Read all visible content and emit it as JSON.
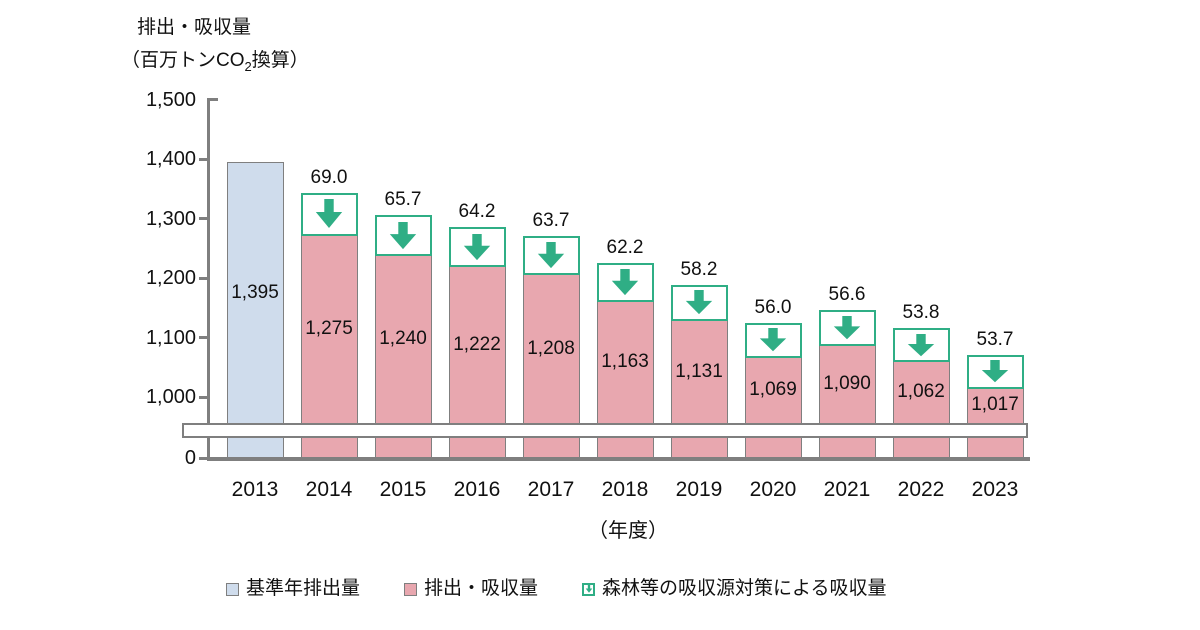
{
  "chart_data": {
    "type": "bar",
    "title": "排出・吸収量",
    "unit_parts": {
      "pre": "（百万トンCO",
      "sub": "2",
      "post": "換算）"
    },
    "unit": "（百万トンCO2換算）",
    "xlabel": "（年度）",
    "grid": false,
    "axis_break_between": [
      0,
      1000
    ],
    "y_axis": {
      "visible_range_upper": [
        1000,
        1500
      ],
      "ticks": [
        {
          "label": "1,500",
          "value": 1500
        },
        {
          "label": "1,400",
          "value": 1400
        },
        {
          "label": "1,300",
          "value": 1300
        },
        {
          "label": "1,200",
          "value": 1200
        },
        {
          "label": "1,100",
          "value": 1100
        },
        {
          "label": "1,000",
          "value": 1000
        },
        {
          "label": "0",
          "value": 0
        }
      ]
    },
    "categories": [
      "2013",
      "2014",
      "2015",
      "2016",
      "2017",
      "2018",
      "2019",
      "2020",
      "2021",
      "2022",
      "2023"
    ],
    "bars": [
      {
        "year": "2013",
        "type": "baseline",
        "value": 1395,
        "label": "1,395"
      },
      {
        "year": "2014",
        "type": "emission",
        "value": 1275,
        "label": "1,275",
        "absorption": 69.0,
        "absorption_label": "69.0"
      },
      {
        "year": "2015",
        "type": "emission",
        "value": 1240,
        "label": "1,240",
        "absorption": 65.7,
        "absorption_label": "65.7"
      },
      {
        "year": "2016",
        "type": "emission",
        "value": 1222,
        "label": "1,222",
        "absorption": 64.2,
        "absorption_label": "64.2"
      },
      {
        "year": "2017",
        "type": "emission",
        "value": 1208,
        "label": "1,208",
        "absorption": 63.7,
        "absorption_label": "63.7"
      },
      {
        "year": "2018",
        "type": "emission",
        "value": 1163,
        "label": "1,163",
        "absorption": 62.2,
        "absorption_label": "62.2"
      },
      {
        "year": "2019",
        "type": "emission",
        "value": 1131,
        "label": "1,131",
        "absorption": 58.2,
        "absorption_label": "58.2"
      },
      {
        "year": "2020",
        "type": "emission",
        "value": 1069,
        "label": "1,069",
        "absorption": 56.0,
        "absorption_label": "56.0"
      },
      {
        "year": "2021",
        "type": "emission",
        "value": 1090,
        "label": "1,090",
        "absorption": 56.6,
        "absorption_label": "56.6"
      },
      {
        "year": "2022",
        "type": "emission",
        "value": 1062,
        "label": "1,062",
        "absorption": 53.8,
        "absorption_label": "53.8"
      },
      {
        "year": "2023",
        "type": "emission",
        "value": 1017,
        "label": "1,017",
        "absorption": 53.7,
        "absorption_label": "53.7"
      }
    ],
    "legend": [
      {
        "label": "基準年排出量",
        "swatch": "baseline"
      },
      {
        "label": "排出・吸収量",
        "swatch": "emission"
      },
      {
        "label": "森林等の吸収源対策による吸収量",
        "swatch": "absorption"
      }
    ],
    "colors": {
      "baseline_fill": "#cfdcec",
      "emission_fill": "#e8a7af",
      "absorption_green": "#2fae85",
      "bar_border": "#7f7f7f",
      "axis_gray": "#7f7f7f",
      "text": "#111111"
    }
  }
}
